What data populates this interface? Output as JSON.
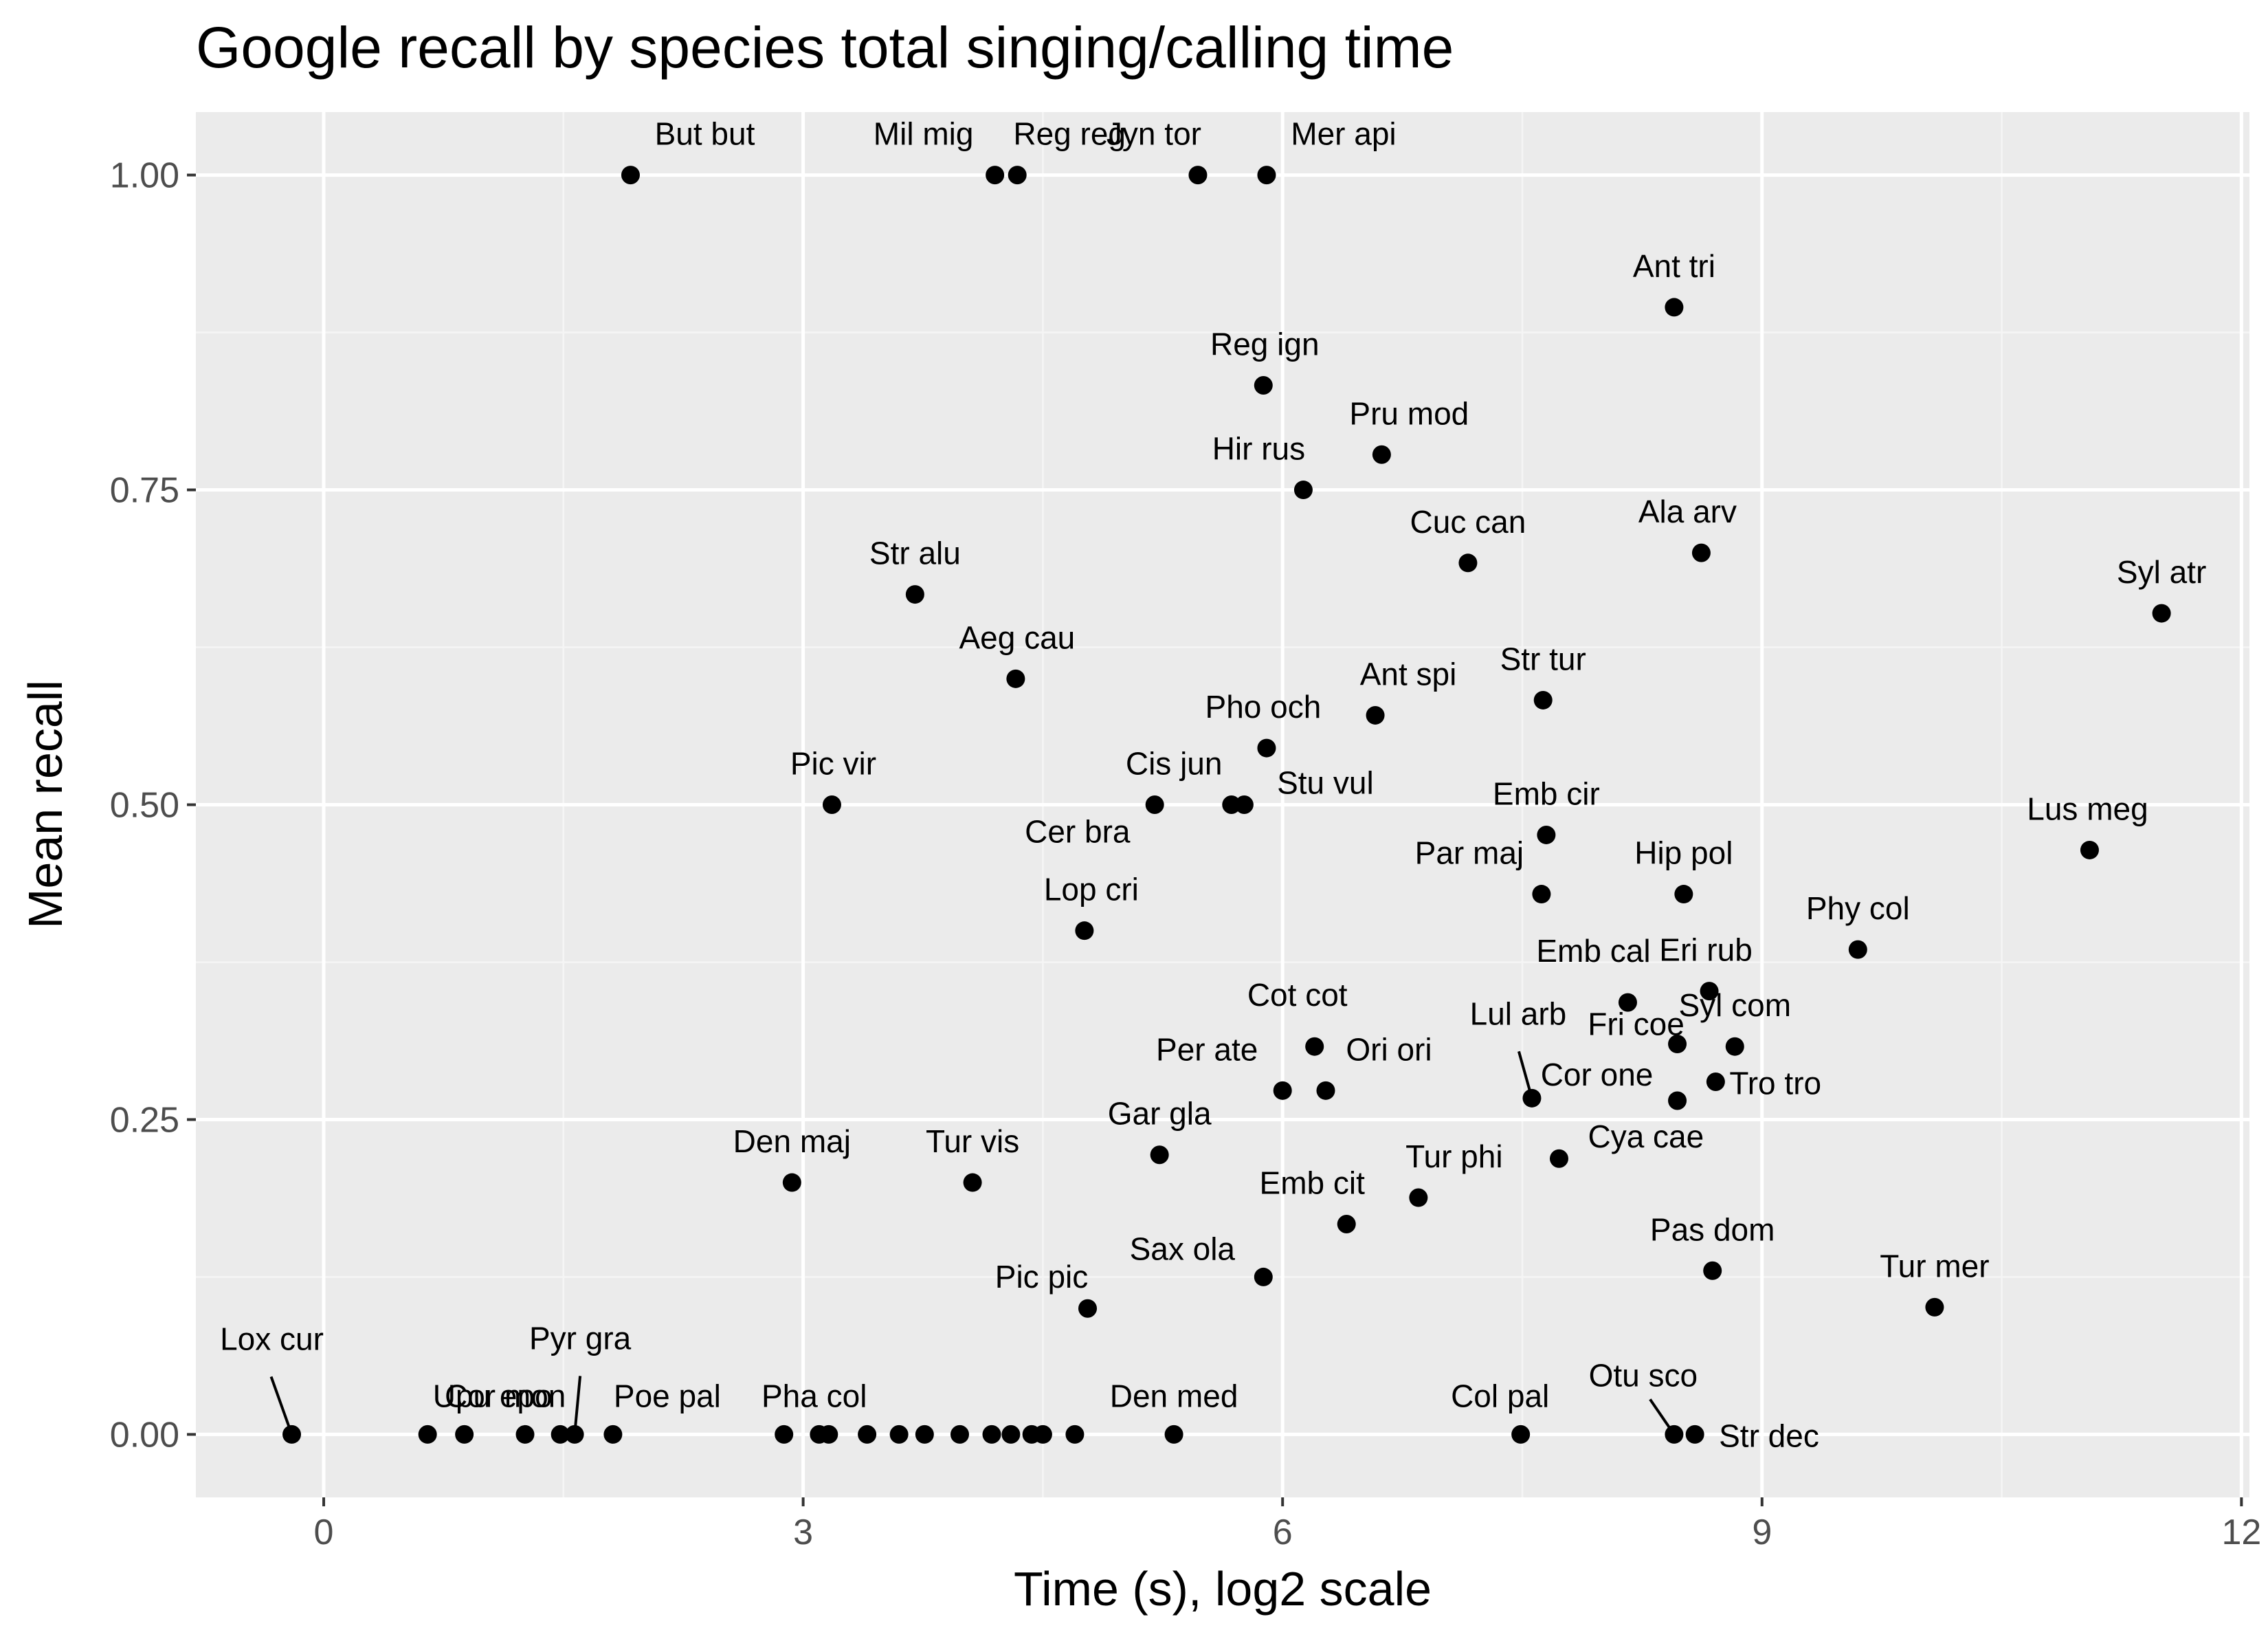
{
  "colors": {
    "panel": "#ebebeb",
    "grid_major": "#ffffff",
    "grid_minor": "#f5f5f5",
    "point": "#000000",
    "tick_text": "#4d4d4d"
  },
  "chart_data": {
    "type": "scatter",
    "title": "Google recall by species total singing/calling time",
    "xlabel": "Time (s), log2 scale",
    "ylabel": "Mean recall",
    "x_scale": "log2",
    "xlim": [
      -0.8,
      12.05
    ],
    "ylim": [
      -0.05,
      1.05
    ],
    "x_ticks": [
      0,
      3,
      6,
      9,
      12
    ],
    "y_ticks": [
      0,
      0.25,
      0.5,
      0.75,
      1
    ],
    "x_tick_labels": [
      "0",
      "3",
      "6",
      "9",
      "12"
    ],
    "y_tick_labels": [
      "0.00",
      "0.25",
      "0.50",
      "0.75",
      "1.00"
    ],
    "grid": true,
    "points": [
      {
        "label": "But but",
        "x": 1.92,
        "y": 1.0
      },
      {
        "label": "Mil mig",
        "x": 4.2,
        "y": 1.0
      },
      {
        "label": "Reg reg",
        "x": 4.34,
        "y": 1.0
      },
      {
        "label": "Jyn tor",
        "x": 5.47,
        "y": 1.0
      },
      {
        "label": "Mer api",
        "x": 5.9,
        "y": 1.0
      },
      {
        "label": "Ant tri",
        "x": 8.45,
        "y": 0.895
      },
      {
        "label": "Reg ign",
        "x": 5.88,
        "y": 0.833
      },
      {
        "label": "Pru mod",
        "x": 6.62,
        "y": 0.778
      },
      {
        "label": "Hir rus",
        "x": 6.13,
        "y": 0.75
      },
      {
        "label": "Cuc can",
        "x": 7.16,
        "y": 0.692
      },
      {
        "label": "Ala arv",
        "x": 8.62,
        "y": 0.7
      },
      {
        "label": "Str alu",
        "x": 3.7,
        "y": 0.667
      },
      {
        "label": "Syl atr",
        "x": 11.5,
        "y": 0.652
      },
      {
        "label": "Aeg cau",
        "x": 4.33,
        "y": 0.6
      },
      {
        "label": "Ant spi",
        "x": 6.58,
        "y": 0.571
      },
      {
        "label": "Str tur",
        "x": 7.63,
        "y": 0.583
      },
      {
        "label": "Pho och",
        "x": 5.9,
        "y": 0.545
      },
      {
        "label": "Pic vir",
        "x": 3.18,
        "y": 0.5
      },
      {
        "label": "Cis jun",
        "x": 5.2,
        "y": 0.5
      },
      {
        "label": "Cer bra",
        "x": 5.68,
        "y": 0.5
      },
      {
        "label": "Stu vul",
        "x": 5.76,
        "y": 0.5
      },
      {
        "label": "Emb cir",
        "x": 7.65,
        "y": 0.476
      },
      {
        "label": "Lus meg",
        "x": 11.05,
        "y": 0.464
      },
      {
        "label": "Par maj",
        "x": 7.62,
        "y": 0.429
      },
      {
        "label": "Hip pol",
        "x": 8.51,
        "y": 0.429
      },
      {
        "label": "Lop cri",
        "x": 4.76,
        "y": 0.4
      },
      {
        "label": "Phy col",
        "x": 9.6,
        "y": 0.385
      },
      {
        "label": "Eri rub",
        "x": 8.67,
        "y": 0.352
      },
      {
        "label": "Emb cal",
        "x": 8.16,
        "y": 0.343
      },
      {
        "label": "Cot cot",
        "x": 6.2,
        "y": 0.308
      },
      {
        "label": "Fri coe",
        "x": 8.47,
        "y": 0.31
      },
      {
        "label": "Syl com",
        "x": 8.83,
        "y": 0.308
      },
      {
        "label": "Per ate",
        "x": 6.0,
        "y": 0.273
      },
      {
        "label": "Ori ori",
        "x": 6.27,
        "y": 0.273
      },
      {
        "label": "Lul arb",
        "x": 7.56,
        "y": 0.267
      },
      {
        "label": "Cor one",
        "x": 8.47,
        "y": 0.265
      },
      {
        "label": "Tro tro",
        "x": 8.71,
        "y": 0.28
      },
      {
        "label": "Gar gla",
        "x": 5.23,
        "y": 0.222
      },
      {
        "label": "Cya cae",
        "x": 7.73,
        "y": 0.219
      },
      {
        "label": "Den maj",
        "x": 2.93,
        "y": 0.2
      },
      {
        "label": "Tur vis",
        "x": 4.06,
        "y": 0.2
      },
      {
        "label": "Tur phi",
        "x": 6.85,
        "y": 0.188
      },
      {
        "label": "Emb cit",
        "x": 6.4,
        "y": 0.167
      },
      {
        "label": "Pas dom",
        "x": 8.69,
        "y": 0.13
      },
      {
        "label": "Sax ola",
        "x": 5.88,
        "y": 0.125
      },
      {
        "label": "Pic pic",
        "x": 4.78,
        "y": 0.1
      },
      {
        "label": "Tur mer",
        "x": 10.08,
        "y": 0.101
      },
      {
        "label": "Lox cur",
        "x": -0.2,
        "y": 0.0
      },
      {
        "label": "Cor mon",
        "x": 0.65,
        "y": 0.0
      },
      {
        "label": "Upu epo",
        "x": 0.88,
        "y": 0.0
      },
      {
        "label": "",
        "x": 1.26,
        "y": 0.0
      },
      {
        "label": "",
        "x": 1.48,
        "y": 0.0
      },
      {
        "label": "Pyr gra",
        "x": 1.57,
        "y": 0.0
      },
      {
        "label": "Poe pal",
        "x": 1.81,
        "y": 0.0
      },
      {
        "label": "Pha col",
        "x": 2.88,
        "y": 0.0
      },
      {
        "label": "",
        "x": 3.1,
        "y": 0.0
      },
      {
        "label": "",
        "x": 3.16,
        "y": 0.0
      },
      {
        "label": "",
        "x": 3.4,
        "y": 0.0
      },
      {
        "label": "",
        "x": 3.6,
        "y": 0.0
      },
      {
        "label": "",
        "x": 3.76,
        "y": 0.0
      },
      {
        "label": "",
        "x": 3.98,
        "y": 0.0
      },
      {
        "label": "",
        "x": 4.18,
        "y": 0.0
      },
      {
        "label": "",
        "x": 4.3,
        "y": 0.0
      },
      {
        "label": "",
        "x": 4.43,
        "y": 0.0
      },
      {
        "label": "",
        "x": 4.5,
        "y": 0.0
      },
      {
        "label": "",
        "x": 4.7,
        "y": 0.0
      },
      {
        "label": "Den med",
        "x": 5.32,
        "y": 0.0
      },
      {
        "label": "Col pal",
        "x": 7.49,
        "y": 0.0
      },
      {
        "label": "Otu sco",
        "x": 8.45,
        "y": 0.0
      },
      {
        "label": "Str dec",
        "x": 8.58,
        "y": 0.0
      }
    ]
  }
}
